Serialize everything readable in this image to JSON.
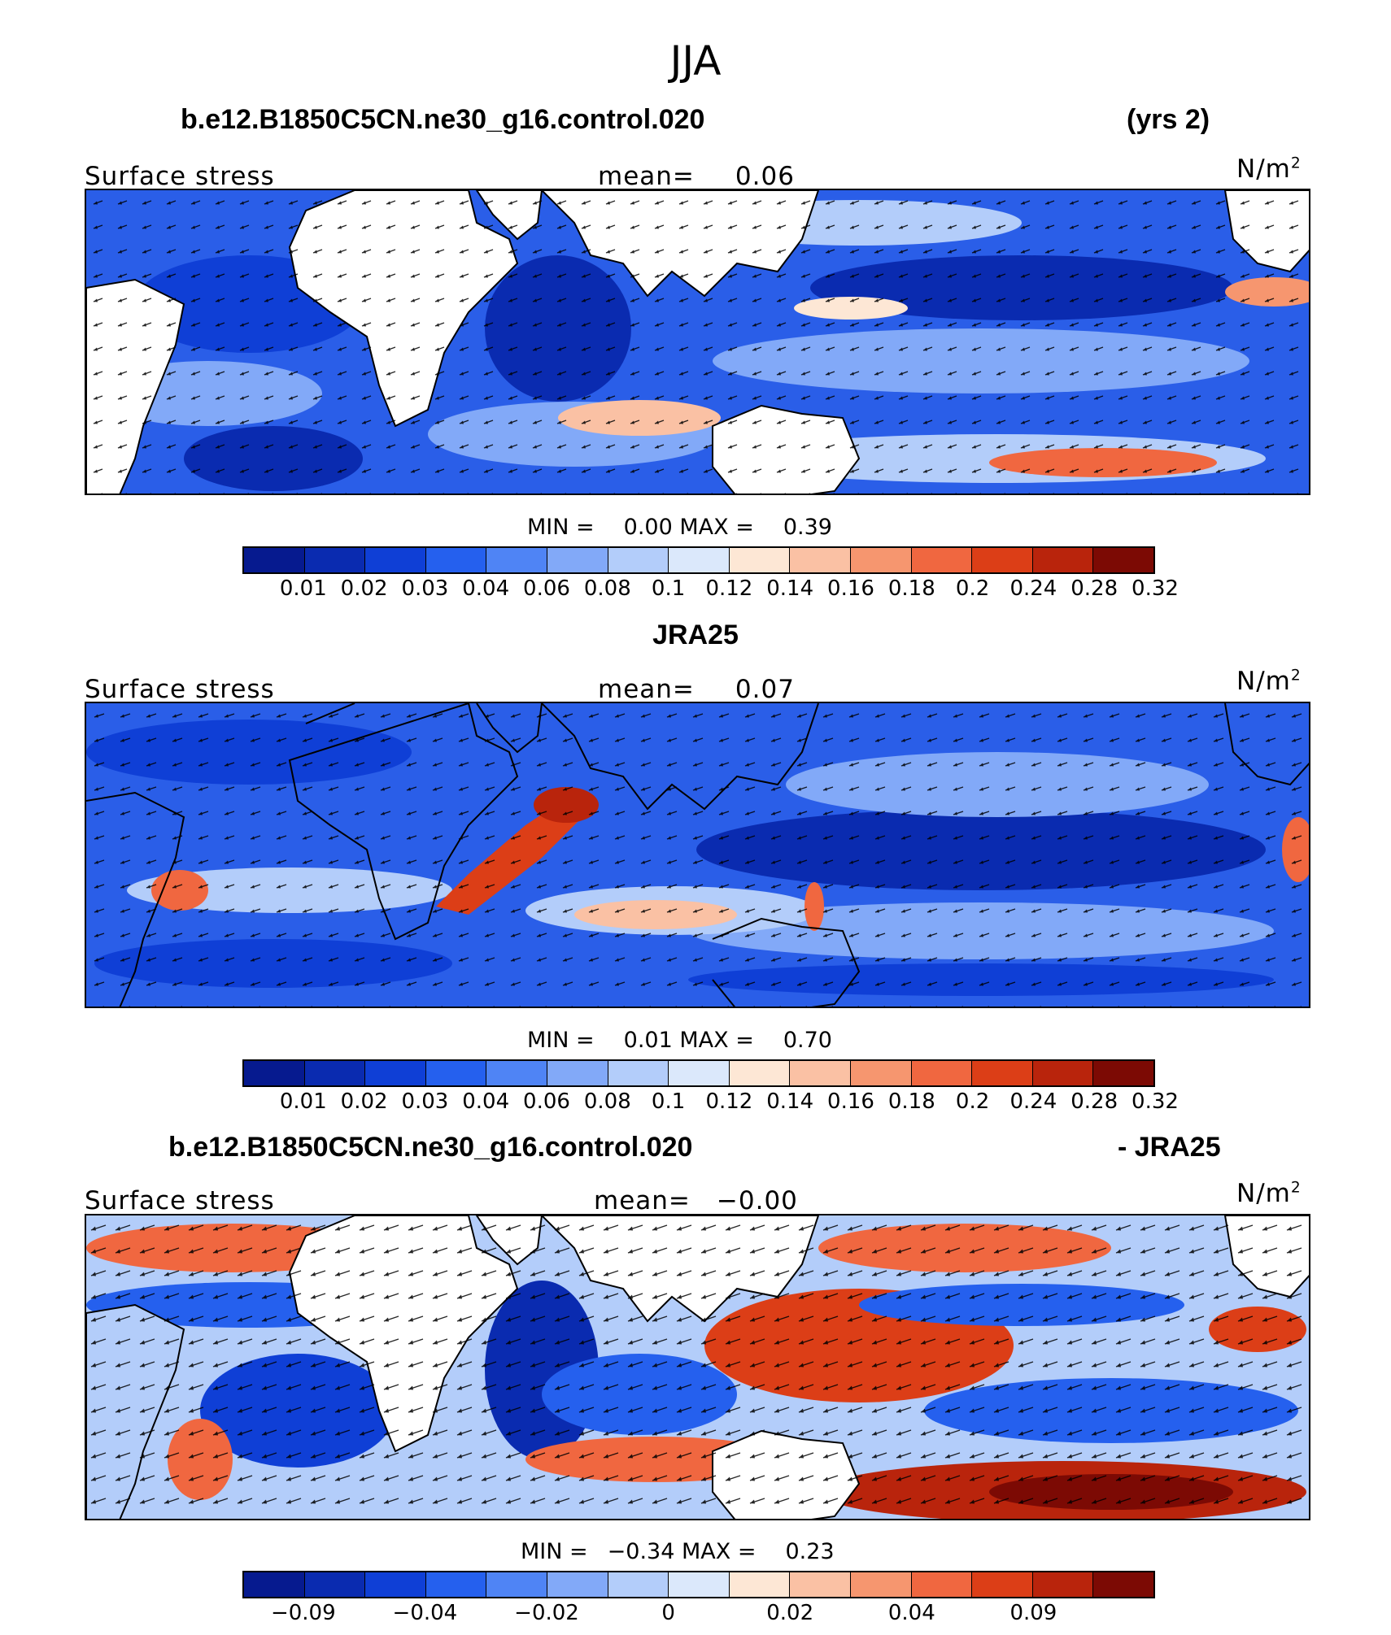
{
  "figure": {
    "season": "JJA",
    "colors": {
      "ocean_bg": "#3a6fe6",
      "land": "#ffffff",
      "coast": "#000000",
      "arrow": "#000000"
    },
    "colorbar_palette": [
      "#061a8f",
      "#0a2bb0",
      "#0f3fd6",
      "#2560ee",
      "#4f84f5",
      "#82a9f8",
      "#b3cdfa",
      "#dbe8fb",
      "#fde7d5",
      "#fac1a4",
      "#f6966f",
      "#f06740",
      "#dc3e17",
      "#b9240c",
      "#7c0a04"
    ]
  },
  "panels": [
    {
      "id": "model",
      "title_left": "b.e12.B1850C5CN.ne30_g16.control.020",
      "title_right": "(yrs 2)",
      "variable": "Surface stress",
      "mean_label": "mean=",
      "mean_value": "0.06",
      "units_base": "N/m",
      "units_exp": "2",
      "min_label": "MIN =",
      "min_value": "0.00",
      "max_label": "MAX =",
      "max_value": "0.39",
      "colorbar_ticks": [
        "0.01",
        "0.02",
        "0.03",
        "0.04",
        "0.06",
        "0.08",
        "0.1",
        "0.12",
        "0.14",
        "0.16",
        "0.18",
        "0.2",
        "0.24",
        "0.28",
        "0.32"
      ]
    },
    {
      "id": "obs",
      "title_center": "JRA25",
      "variable": "Surface stress",
      "mean_label": "mean=",
      "mean_value": "0.07",
      "units_base": "N/m",
      "units_exp": "2",
      "min_label": "MIN =",
      "min_value": "0.01",
      "max_label": "MAX =",
      "max_value": "0.70",
      "colorbar_ticks": [
        "0.01",
        "0.02",
        "0.03",
        "0.04",
        "0.06",
        "0.08",
        "0.1",
        "0.12",
        "0.14",
        "0.16",
        "0.18",
        "0.2",
        "0.24",
        "0.28",
        "0.32"
      ]
    },
    {
      "id": "diff",
      "title_left": "b.e12.B1850C5CN.ne30_g16.control.020",
      "title_right": "- JRA25",
      "variable": "Surface stress",
      "mean_label": "mean=",
      "mean_value": "−0.00",
      "units_base": "N/m",
      "units_exp": "2",
      "min_label": "MIN =",
      "min_value": "−0.34",
      "max_label": "MAX =",
      "max_value": "0.23",
      "colorbar_ticks": [
        "−0.09",
        "−0.04",
        "−0.02",
        "0",
        "0.02",
        "0.04",
        "0.09"
      ]
    }
  ]
}
